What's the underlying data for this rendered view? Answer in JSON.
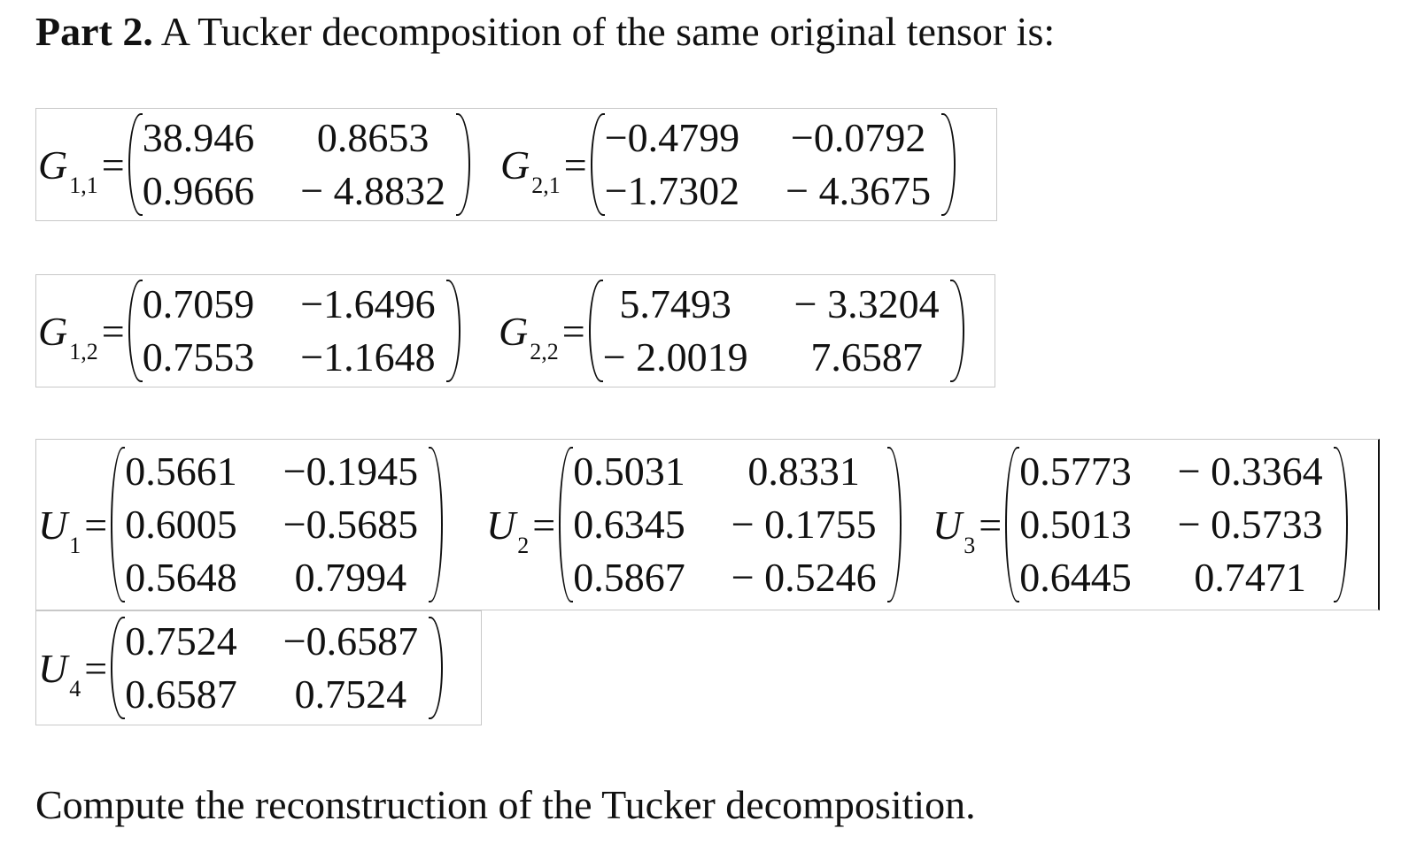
{
  "heading": {
    "bold": "Part 2.",
    "text": " A Tucker decomposition of the same original tensor is:"
  },
  "core": {
    "G11": {
      "sym": "G",
      "sub": "1,1",
      "rows": [
        [
          "38.946",
          "0.8653"
        ],
        [
          "0.9666",
          "− 4.8832"
        ]
      ]
    },
    "G21": {
      "sym": "G",
      "sub": "2,1",
      "rows": [
        [
          "−0.4799",
          "−0.0792"
        ],
        [
          "−1.7302",
          "− 4.3675"
        ]
      ]
    },
    "G12": {
      "sym": "G",
      "sub": "1,2",
      "rows": [
        [
          "0.7059",
          "−1.6496"
        ],
        [
          "0.7553",
          "−1.1648"
        ]
      ]
    },
    "G22": {
      "sym": "G",
      "sub": "2,2",
      "rows": [
        [
          "5.7493",
          "− 3.3204"
        ],
        [
          "− 2.0019",
          "7.6587"
        ]
      ]
    }
  },
  "factors": {
    "U1": {
      "sym": "U",
      "sub": "1",
      "rows": [
        [
          "0.5661",
          "−0.1945"
        ],
        [
          "0.6005",
          "−0.5685"
        ],
        [
          "0.5648",
          "0.7994"
        ]
      ]
    },
    "U2": {
      "sym": "U",
      "sub": "2",
      "rows": [
        [
          "0.5031",
          "0.8331"
        ],
        [
          "0.6345",
          "− 0.1755"
        ],
        [
          "0.5867",
          "− 0.5246"
        ]
      ]
    },
    "U3": {
      "sym": "U",
      "sub": "3",
      "rows": [
        [
          "0.5773",
          "− 0.3364"
        ],
        [
          "0.5013",
          "− 0.5733"
        ],
        [
          "0.6445",
          "0.7471"
        ]
      ]
    },
    "U4": {
      "sym": "U",
      "sub": "4",
      "rows": [
        [
          "0.7524",
          "−0.6587"
        ],
        [
          "0.6587",
          "0.7524"
        ]
      ]
    }
  },
  "equals_sign": "=",
  "footer": "Compute the reconstruction of the Tucker decomposition."
}
